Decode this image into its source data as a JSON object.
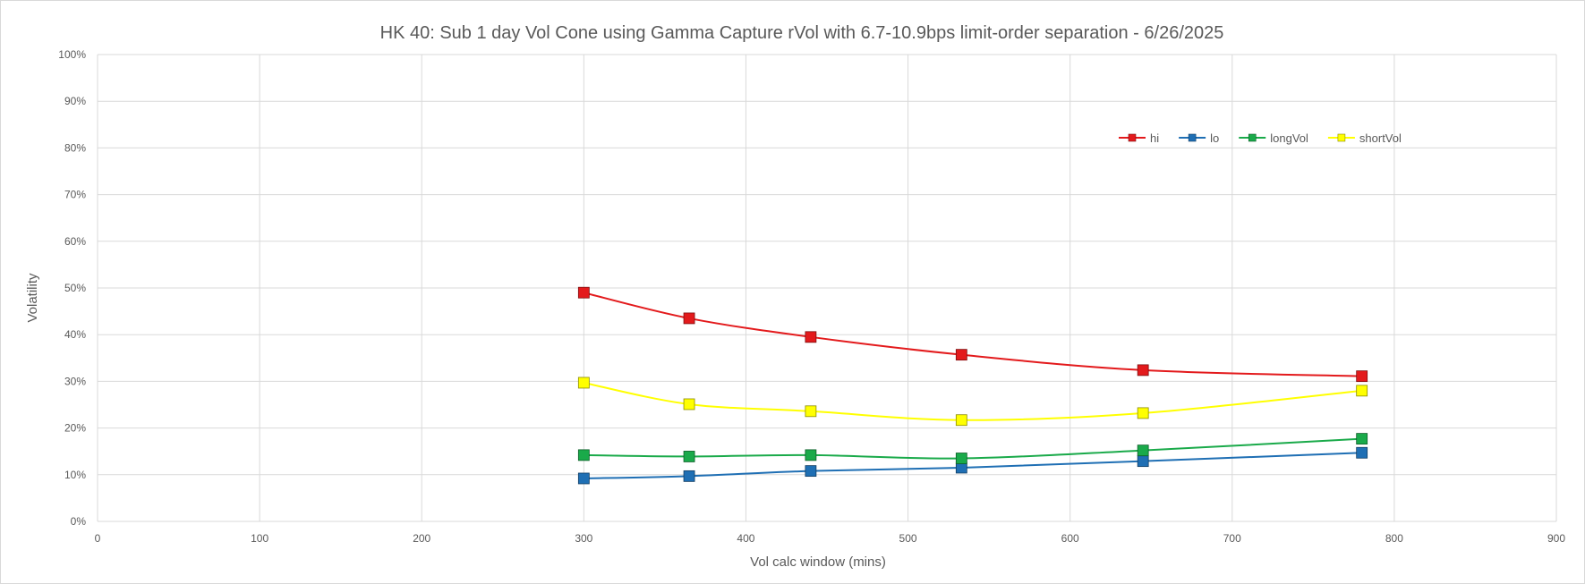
{
  "chart_data": {
    "type": "line",
    "title": "HK 40: Sub 1 day Vol Cone using Gamma Capture rVol with 6.7-10.9bps limit-order separation - 6/26/2025",
    "xlabel": "Vol calc window (mins)",
    "ylabel": "Volatility",
    "xlim": [
      0,
      900
    ],
    "ylim": [
      0,
      1
    ],
    "x_ticks": [
      0,
      100,
      200,
      300,
      400,
      500,
      600,
      700,
      800,
      900
    ],
    "x_tick_labels": [
      "0",
      "100",
      "200",
      "300",
      "400",
      "500",
      "600",
      "700",
      "800",
      "900"
    ],
    "y_ticks": [
      0,
      0.1,
      0.2,
      0.3,
      0.4,
      0.5,
      0.6,
      0.7,
      0.8,
      0.9,
      1.0
    ],
    "y_tick_labels": [
      "0%",
      "10%",
      "20%",
      "30%",
      "40%",
      "50%",
      "60%",
      "70%",
      "80%",
      "90%",
      "100%"
    ],
    "grid": true,
    "legend_position": "top-right",
    "x": [
      300,
      365,
      440,
      533,
      645,
      780
    ],
    "series": [
      {
        "name": "hi",
        "color": "#e31a1c",
        "marker": "square",
        "values": [
          0.49,
          0.435,
          0.395,
          0.357,
          0.324,
          0.311
        ]
      },
      {
        "name": "lo",
        "color": "#1f6fb4",
        "marker": "square",
        "values": [
          0.092,
          0.097,
          0.108,
          0.115,
          0.129,
          0.147
        ]
      },
      {
        "name": "longVol",
        "color": "#1aaa4a",
        "marker": "square",
        "values": [
          0.142,
          0.139,
          0.142,
          0.135,
          0.152,
          0.177
        ]
      },
      {
        "name": "shortVol",
        "color": "#ffff00",
        "marker": "square",
        "values": [
          0.297,
          0.251,
          0.236,
          0.217,
          0.232,
          0.28
        ]
      }
    ]
  }
}
